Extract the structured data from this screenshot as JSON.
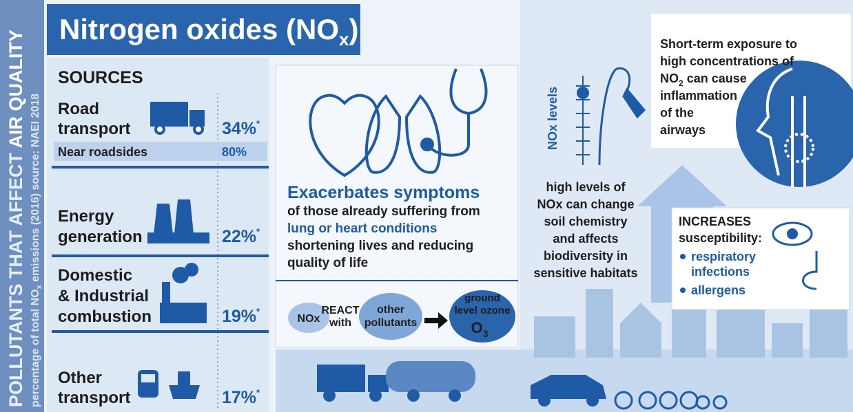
{
  "side": {
    "title": "POLLUTANTS THAT AFFECT ",
    "title_strong": "AIR QUALITY",
    "source_pre": "percentage of total NO",
    "source_sub": "x",
    "source_post": " emissions (2016) source: NAEI 2018"
  },
  "header": {
    "title": "Nitrogen oxides (NO",
    "sub": "x",
    "close": ")"
  },
  "sources": {
    "heading": "SOURCES",
    "items": [
      {
        "label": [
          "Road",
          "transport"
        ],
        "value": "34%",
        "mark": "*",
        "detail": {
          "label": "Near roadsides",
          "value": "80%"
        }
      },
      {
        "label": [
          "Energy",
          "generation"
        ],
        "value": "22%",
        "mark": "*"
      },
      {
        "label": [
          "Domestic",
          "& Industrial",
          "combustion"
        ],
        "value": "19%",
        "mark": "*"
      },
      {
        "label": [
          "Other",
          "transport"
        ],
        "value": "17%",
        "mark": "*"
      }
    ]
  },
  "health": {
    "heading": "Exacerbates symptoms",
    "lines": [
      "of those already suffering from",
      "lung or heart conditions",
      "shortening lives and reducing",
      "quality of life"
    ]
  },
  "reaction": {
    "nox": "NOx",
    "react": [
      "REACT",
      "with"
    ],
    "other": [
      "other",
      "pollutants"
    ],
    "ozone": [
      "ground",
      "level ozone"
    ],
    "o3": "O",
    "o3_sub": "3"
  },
  "environment": {
    "scale_label": "NOx levels",
    "lines": [
      "high levels of",
      "NOx can change",
      "soil chemistry",
      "and affects",
      "biodiversity in",
      "sensitive habitats"
    ]
  },
  "exposure": {
    "lines": [
      "Short-term exposure to",
      "high concentrations of"
    ],
    "no2": "NO",
    "no2_sub": "2",
    "no2_post": " can cause",
    "rest": [
      "inflammation",
      "of the",
      "airways"
    ]
  },
  "susceptibility": {
    "heading": "INCREASES",
    "sub": "susceptibility:",
    "items": [
      [
        "respiratory",
        "infections"
      ],
      [
        "allergens"
      ]
    ]
  }
}
